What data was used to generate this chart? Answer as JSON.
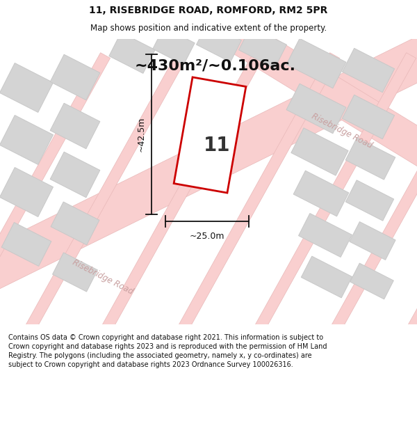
{
  "title_line1": "11, RISEBRIDGE ROAD, ROMFORD, RM2 5PR",
  "title_line2": "Map shows position and indicative extent of the property.",
  "area_text": "~430m²/~0.106ac.",
  "property_number": "11",
  "dim_width": "~25.0m",
  "dim_height": "~42.5m",
  "road_label_bottom": "Risebridge Road",
  "road_label_right": "Risebridge Road",
  "footer_text": "Contains OS data © Crown copyright and database right 2021. This information is subject to Crown copyright and database rights 2023 and is reproduced with the permission of HM Land Registry. The polygons (including the associated geometry, namely x, y co-ordinates) are subject to Crown copyright and database rights 2023 Ordnance Survey 100026316.",
  "map_bg": "#f2f2f2",
  "road_fill": "#f9cfcf",
  "road_edge": "#e8b8b8",
  "building_fill": "#d4d4d4",
  "building_edge": "#c8c8c8",
  "highlight_edge": "#cc0000",
  "highlight_fill": "#ffffff",
  "dim_color": "#111111",
  "road_text_color": "#c8a0a0",
  "title_color": "#111111",
  "footer_color": "#111111",
  "area_fontsize": 16,
  "num_fontsize": 20
}
